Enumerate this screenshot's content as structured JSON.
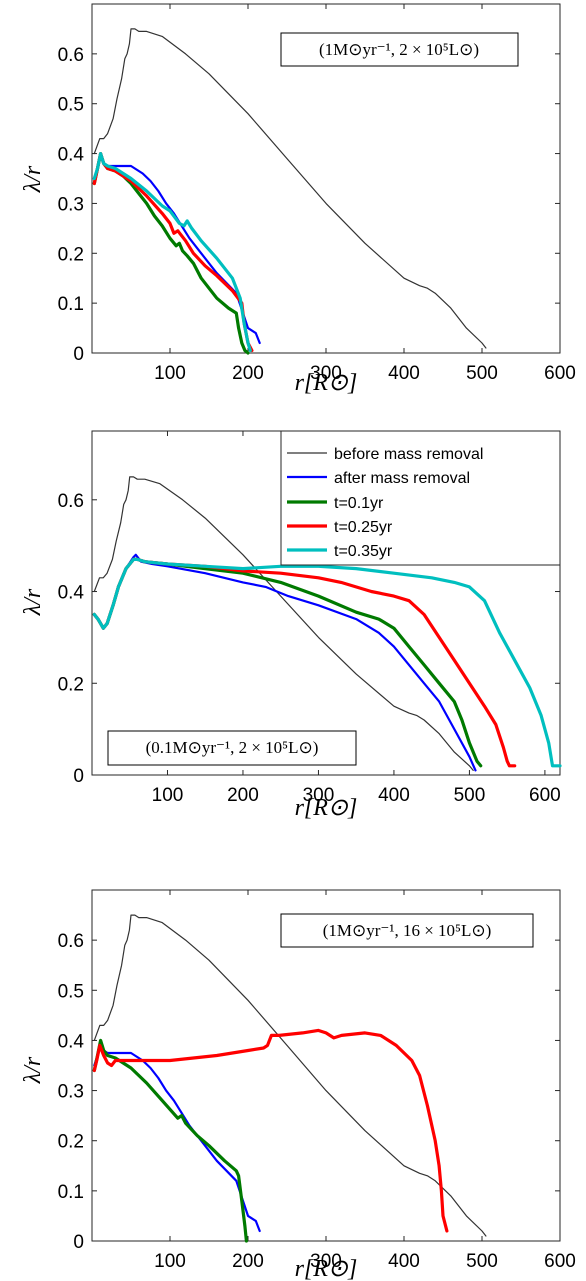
{
  "colors": {
    "before": "#333333",
    "after": "#0000ff",
    "t01": "#007a00",
    "t025": "#ff0000",
    "t035": "#00bfbf"
  },
  "chart_data": [
    {
      "type": "line",
      "xlabel": "r[R⊙]",
      "ylabel": "λ/r",
      "xlim": [
        0,
        600
      ],
      "ylim": [
        0,
        0.7
      ],
      "xticks": [
        100,
        200,
        300,
        400,
        500,
        600
      ],
      "yticks": [
        0,
        0.1,
        0.2,
        0.3,
        0.4,
        0.5,
        0.6
      ],
      "ytick_labels": [
        "0",
        "0.1",
        "0.2",
        "0.3",
        "0.4",
        "0.5",
        "0.6"
      ],
      "annotation": "(1M⊙yr⁻¹, 2 × 10⁵L⊙)",
      "series": [
        {
          "key": "before",
          "width": 1.2,
          "x": [
            3,
            10,
            15,
            20,
            27,
            32,
            38,
            42,
            45,
            48,
            50,
            55,
            60,
            70,
            90,
            120,
            150,
            200,
            250,
            300,
            350,
            400,
            420,
            430,
            440,
            460,
            480,
            500,
            505
          ],
          "y": [
            0.4,
            0.43,
            0.43,
            0.44,
            0.47,
            0.51,
            0.55,
            0.59,
            0.6,
            0.62,
            0.65,
            0.65,
            0.645,
            0.645,
            0.635,
            0.6,
            0.56,
            0.48,
            0.39,
            0.3,
            0.22,
            0.15,
            0.135,
            0.13,
            0.12,
            0.09,
            0.05,
            0.02,
            0.01
          ]
        },
        {
          "key": "after",
          "width": 2.2,
          "x": [
            3,
            7,
            11,
            15,
            20,
            30,
            50,
            65,
            75,
            85,
            95,
            105,
            115,
            125,
            140,
            160,
            185,
            200,
            205,
            210,
            215
          ],
          "y": [
            0.35,
            0.37,
            0.4,
            0.38,
            0.375,
            0.375,
            0.375,
            0.36,
            0.345,
            0.325,
            0.3,
            0.28,
            0.255,
            0.23,
            0.2,
            0.16,
            0.12,
            0.05,
            0.045,
            0.04,
            0.02
          ]
        },
        {
          "key": "t01",
          "width": 3.2,
          "x": [
            3,
            7,
            11,
            15,
            20,
            30,
            40,
            50,
            60,
            70,
            80,
            90,
            100,
            108,
            112,
            116,
            122,
            130,
            140,
            160,
            175,
            185,
            188,
            192,
            196,
            200
          ],
          "y": [
            0.34,
            0.37,
            0.4,
            0.38,
            0.37,
            0.365,
            0.355,
            0.34,
            0.32,
            0.3,
            0.275,
            0.255,
            0.23,
            0.215,
            0.22,
            0.205,
            0.195,
            0.18,
            0.15,
            0.11,
            0.09,
            0.08,
            0.05,
            0.02,
            0.005,
            0.0
          ]
        },
        {
          "key": "t025",
          "width": 3.2,
          "x": [
            3,
            7,
            11,
            15,
            20,
            30,
            50,
            70,
            90,
            100,
            105,
            110,
            115,
            120,
            130,
            145,
            160,
            180,
            192,
            195,
            200,
            205
          ],
          "y": [
            0.34,
            0.37,
            0.4,
            0.38,
            0.37,
            0.365,
            0.345,
            0.315,
            0.28,
            0.26,
            0.24,
            0.245,
            0.235,
            0.225,
            0.2,
            0.175,
            0.155,
            0.125,
            0.1,
            0.06,
            0.02,
            0.005
          ]
        },
        {
          "key": "t035",
          "width": 3.2,
          "x": [
            3,
            7,
            11,
            15,
            20,
            30,
            50,
            70,
            90,
            100,
            112,
            118,
            122,
            128,
            140,
            160,
            180,
            190,
            195,
            200,
            203
          ],
          "y": [
            0.35,
            0.37,
            0.4,
            0.38,
            0.375,
            0.37,
            0.35,
            0.325,
            0.295,
            0.285,
            0.26,
            0.255,
            0.265,
            0.25,
            0.225,
            0.19,
            0.15,
            0.11,
            0.06,
            0.02,
            0.005
          ]
        }
      ]
    },
    {
      "type": "line",
      "xlabel": "r[R⊙]",
      "ylabel": "λ/r",
      "xlim": [
        0,
        620
      ],
      "ylim": [
        0,
        0.75
      ],
      "xticks": [
        100,
        200,
        300,
        400,
        500,
        600
      ],
      "yticks": [
        0,
        0.2,
        0.4,
        0.6
      ],
      "ytick_labels": [
        "0",
        "0.2",
        "0.4",
        "0.6"
      ],
      "annotation": "(0.1M⊙yr⁻¹, 2 × 10⁵L⊙)",
      "legend": [
        "before mass removal",
        "after mass removal",
        "t=0.1yr",
        "t=0.25yr",
        "t=0.35yr"
      ],
      "series": [
        {
          "key": "before",
          "width": 1.2,
          "x": [
            3,
            10,
            15,
            20,
            27,
            32,
            38,
            42,
            45,
            48,
            50,
            55,
            60,
            70,
            90,
            120,
            150,
            200,
            250,
            300,
            350,
            400,
            420,
            430,
            440,
            460,
            480,
            500,
            505
          ],
          "y": [
            0.4,
            0.43,
            0.43,
            0.44,
            0.47,
            0.51,
            0.55,
            0.59,
            0.6,
            0.62,
            0.65,
            0.65,
            0.645,
            0.645,
            0.635,
            0.6,
            0.56,
            0.48,
            0.39,
            0.3,
            0.22,
            0.15,
            0.135,
            0.13,
            0.12,
            0.09,
            0.05,
            0.02,
            0.01
          ]
        },
        {
          "key": "after",
          "width": 2.2,
          "x": [
            3,
            8,
            15,
            20,
            28,
            35,
            45,
            55,
            58,
            65,
            80,
            100,
            150,
            200,
            230,
            260,
            300,
            350,
            380,
            400,
            420,
            440,
            460,
            480,
            500,
            508
          ],
          "y": [
            0.35,
            0.34,
            0.32,
            0.33,
            0.37,
            0.41,
            0.45,
            0.475,
            0.48,
            0.465,
            0.46,
            0.455,
            0.44,
            0.42,
            0.41,
            0.39,
            0.37,
            0.34,
            0.31,
            0.28,
            0.24,
            0.2,
            0.16,
            0.1,
            0.04,
            0.01
          ]
        },
        {
          "key": "t01",
          "width": 3.2,
          "x": [
            3,
            8,
            15,
            20,
            28,
            35,
            45,
            55,
            60,
            70,
            100,
            150,
            200,
            250,
            300,
            350,
            380,
            400,
            420,
            440,
            460,
            480,
            490,
            500,
            510,
            515
          ],
          "y": [
            0.35,
            0.34,
            0.32,
            0.33,
            0.37,
            0.41,
            0.45,
            0.47,
            0.47,
            0.465,
            0.46,
            0.45,
            0.44,
            0.42,
            0.39,
            0.355,
            0.34,
            0.32,
            0.28,
            0.24,
            0.2,
            0.16,
            0.12,
            0.07,
            0.03,
            0.02
          ]
        },
        {
          "key": "t025",
          "width": 3.2,
          "x": [
            3,
            8,
            15,
            20,
            28,
            35,
            45,
            55,
            60,
            70,
            100,
            150,
            200,
            250,
            300,
            330,
            370,
            400,
            420,
            440,
            460,
            480,
            500,
            520,
            535,
            545,
            550,
            553,
            560
          ],
          "y": [
            0.35,
            0.34,
            0.32,
            0.33,
            0.37,
            0.41,
            0.45,
            0.47,
            0.47,
            0.465,
            0.46,
            0.455,
            0.445,
            0.44,
            0.43,
            0.42,
            0.4,
            0.39,
            0.38,
            0.35,
            0.3,
            0.25,
            0.2,
            0.15,
            0.11,
            0.06,
            0.03,
            0.02,
            0.02
          ]
        },
        {
          "key": "t035",
          "width": 3.2,
          "x": [
            3,
            8,
            15,
            20,
            28,
            35,
            45,
            55,
            60,
            70,
            100,
            150,
            200,
            250,
            300,
            350,
            400,
            450,
            480,
            500,
            520,
            540,
            560,
            580,
            595,
            605,
            610,
            620
          ],
          "y": [
            0.35,
            0.34,
            0.32,
            0.33,
            0.37,
            0.41,
            0.45,
            0.47,
            0.47,
            0.465,
            0.46,
            0.455,
            0.45,
            0.455,
            0.455,
            0.45,
            0.44,
            0.43,
            0.42,
            0.41,
            0.38,
            0.31,
            0.25,
            0.19,
            0.13,
            0.07,
            0.02,
            0.02
          ]
        }
      ]
    },
    {
      "type": "line",
      "xlabel": "r[R⊙]",
      "ylabel": "λ/r",
      "xlim": [
        0,
        600
      ],
      "ylim": [
        0,
        0.7
      ],
      "xticks": [
        100,
        200,
        300,
        400,
        500,
        600
      ],
      "yticks": [
        0,
        0.1,
        0.2,
        0.3,
        0.4,
        0.5,
        0.6
      ],
      "ytick_labels": [
        "0",
        "0.1",
        "0.2",
        "0.3",
        "0.4",
        "0.5",
        "0.6"
      ],
      "annotation": "(1M⊙yr⁻¹, 16 × 10⁵L⊙)",
      "series": [
        {
          "key": "before",
          "width": 1.2,
          "x": [
            3,
            10,
            15,
            20,
            27,
            32,
            38,
            42,
            45,
            48,
            50,
            55,
            60,
            70,
            90,
            120,
            150,
            200,
            250,
            300,
            350,
            400,
            420,
            430,
            440,
            460,
            480,
            500,
            505
          ],
          "y": [
            0.4,
            0.43,
            0.43,
            0.44,
            0.47,
            0.51,
            0.55,
            0.59,
            0.6,
            0.62,
            0.65,
            0.65,
            0.645,
            0.645,
            0.635,
            0.6,
            0.56,
            0.48,
            0.39,
            0.3,
            0.22,
            0.15,
            0.135,
            0.13,
            0.12,
            0.09,
            0.05,
            0.02,
            0.01
          ]
        },
        {
          "key": "after",
          "width": 2.2,
          "x": [
            3,
            7,
            11,
            15,
            20,
            30,
            50,
            65,
            75,
            85,
            95,
            105,
            115,
            125,
            140,
            160,
            185,
            200,
            205,
            210,
            215
          ],
          "y": [
            0.35,
            0.37,
            0.4,
            0.38,
            0.375,
            0.375,
            0.375,
            0.36,
            0.345,
            0.325,
            0.3,
            0.28,
            0.255,
            0.23,
            0.2,
            0.16,
            0.12,
            0.05,
            0.045,
            0.04,
            0.02
          ]
        },
        {
          "key": "t01",
          "width": 3.2,
          "x": [
            3,
            7,
            11,
            15,
            20,
            30,
            50,
            70,
            90,
            110,
            115,
            120,
            135,
            150,
            170,
            185,
            188,
            192,
            196,
            198
          ],
          "y": [
            0.34,
            0.37,
            0.4,
            0.38,
            0.37,
            0.365,
            0.345,
            0.315,
            0.28,
            0.245,
            0.25,
            0.235,
            0.21,
            0.19,
            0.16,
            0.14,
            0.13,
            0.08,
            0.03,
            0.0
          ]
        },
        {
          "key": "t025",
          "width": 3.2,
          "x": [
            3,
            6,
            10,
            15,
            20,
            25,
            30,
            40,
            60,
            100,
            130,
            160,
            200,
            220,
            225,
            230,
            240,
            270,
            290,
            300,
            310,
            320,
            350,
            370,
            390,
            410,
            420,
            430,
            440,
            445,
            448,
            450,
            455
          ],
          "y": [
            0.34,
            0.36,
            0.39,
            0.37,
            0.355,
            0.35,
            0.36,
            0.36,
            0.36,
            0.36,
            0.365,
            0.37,
            0.38,
            0.385,
            0.39,
            0.41,
            0.41,
            0.415,
            0.42,
            0.415,
            0.405,
            0.41,
            0.415,
            0.41,
            0.39,
            0.36,
            0.33,
            0.27,
            0.2,
            0.15,
            0.1,
            0.05,
            0.02
          ]
        }
      ]
    }
  ]
}
